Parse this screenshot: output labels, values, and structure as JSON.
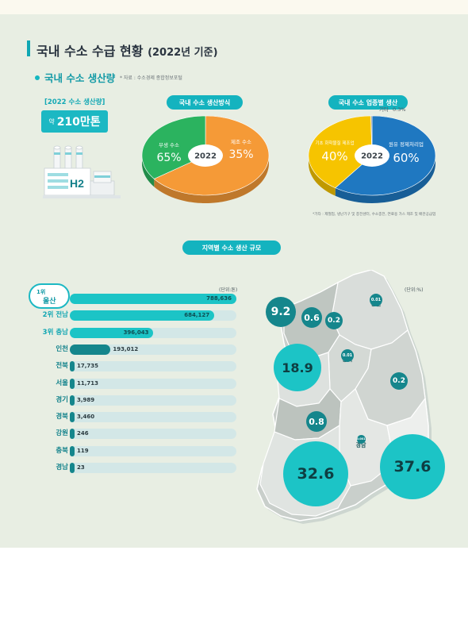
{
  "header": {
    "title": "국내 수소 수급 현황",
    "title_sub": "(2022년 기준)",
    "section_title": "국내 수소 생산량",
    "source": "* 자료 : 수소경제 종합정보포털"
  },
  "production": {
    "label": "[2022 수소 생산량]",
    "prefix": "약",
    "value": "210만톤",
    "h2_label": "H2"
  },
  "chart_data": [
    {
      "type": "pie",
      "title": "국내 수소 생산방식",
      "center_label": "2022",
      "slices": [
        {
          "label": "부생 수소",
          "value": 65,
          "display": "65%",
          "color": "#f59a37"
        },
        {
          "label": "제조 수소",
          "value": 35,
          "display": "35%",
          "color": "#2bb35f"
        }
      ]
    },
    {
      "type": "pie",
      "title": "국내 수소 업종별 생산",
      "center_label": "2022",
      "slices": [
        {
          "label": "원유 정제처리업",
          "value": 60,
          "display": "60%",
          "color": "#1f78c1"
        },
        {
          "label": "기초 화학물질 제조업",
          "value": 40,
          "display": "40%",
          "color": "#f6c400"
        },
        {
          "label": "기타",
          "value": 0.3,
          "display": "0.3%",
          "color": "#8d8d8d"
        }
      ],
      "footnote": "*기타 : 제철업, 냉난기구 및 충전센터, 수소충전, 연료용 가스 제조 및 배관공급업"
    },
    {
      "type": "bar",
      "orientation": "horizontal",
      "title": "지역별 수소 생산 규모",
      "unit": "(단위:톤)",
      "rank_suffix": "위",
      "categories": [
        "울산",
        "전남",
        "충남",
        "인천",
        "전북",
        "서울",
        "경기",
        "경북",
        "강원",
        "충북",
        "경남"
      ],
      "values": [
        788636,
        684127,
        396043,
        193012,
        17735,
        11713,
        3989,
        3460,
        246,
        119,
        23
      ],
      "value_labels": [
        "788,636",
        "684,127",
        "396,043",
        "193,012",
        "17,735",
        "11,713",
        "3,989",
        "3,460",
        "246",
        "119",
        "23"
      ],
      "ranked": [
        1,
        2,
        3
      ],
      "colors": {
        "top": "#1cc4c6",
        "other": "#15868c",
        "track": "#d3e7e7"
      }
    },
    {
      "type": "bubble-map",
      "unit": "(단위:%)",
      "regions": [
        {
          "name": "인천",
          "value": 9.2
        },
        {
          "name": "서울",
          "value": 0.6
        },
        {
          "name": "경기",
          "value": 0.2
        },
        {
          "name": "강원",
          "value": 0.01
        },
        {
          "name": "충북",
          "value": 0.01
        },
        {
          "name": "충남",
          "value": 18.9
        },
        {
          "name": "경북",
          "value": 0.2
        },
        {
          "name": "전북",
          "value": 0.8
        },
        {
          "name": "경남",
          "value": 0.001
        },
        {
          "name": "전남",
          "value": 32.6
        },
        {
          "name": "울산",
          "value": 37.6
        }
      ]
    }
  ]
}
